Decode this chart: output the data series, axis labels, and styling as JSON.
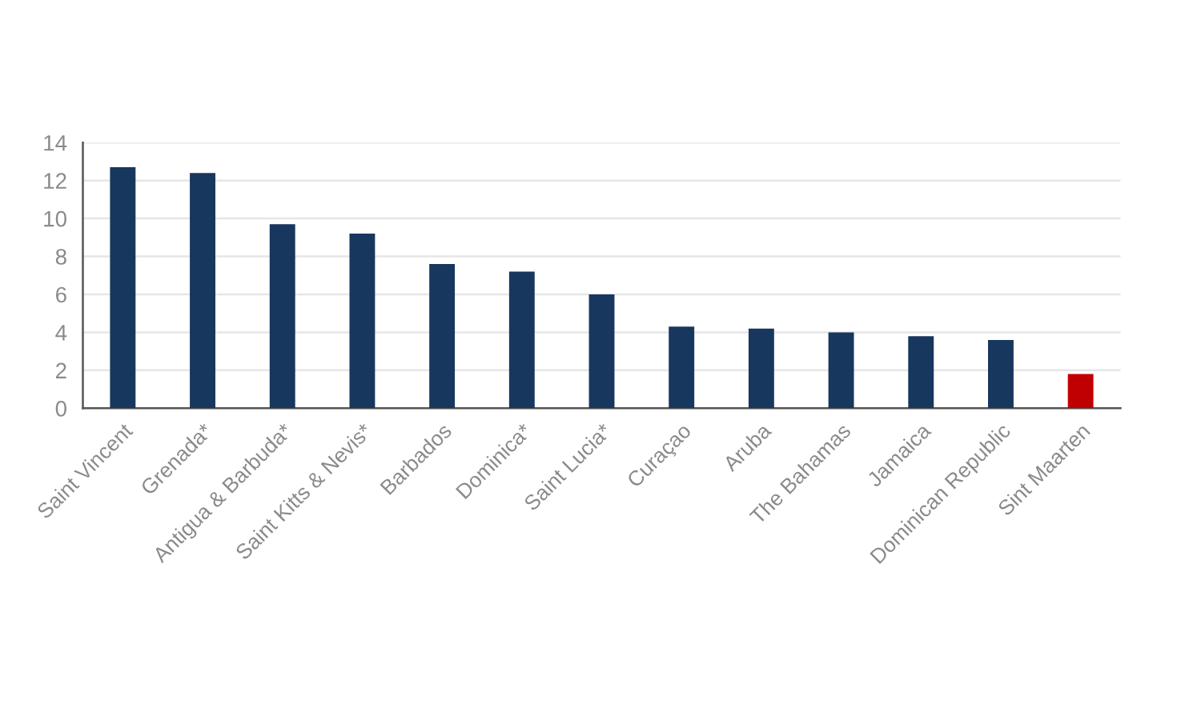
{
  "chart_data": {
    "type": "bar",
    "categories": [
      "Saint Vincent",
      "Grenada*",
      "Antigua & Barbuda*",
      "Saint Kitts & Nevis*",
      "Barbados",
      "Dominica*",
      "Saint Lucia*",
      "Curaçao",
      "Aruba",
      "The Bahamas",
      "Jamaica",
      "Dominican Republic",
      "Sint Maarten"
    ],
    "values": [
      12.7,
      12.4,
      9.7,
      9.2,
      7.6,
      7.2,
      6.0,
      4.3,
      4.2,
      4.0,
      3.8,
      3.6,
      1.8
    ],
    "colors": [
      "#17375e",
      "#17375e",
      "#17375e",
      "#17375e",
      "#17375e",
      "#17375e",
      "#17375e",
      "#17375e",
      "#17375e",
      "#17375e",
      "#17375e",
      "#17375e",
      "#c00000"
    ],
    "ylim": [
      0,
      14
    ],
    "yticks": [
      0,
      2,
      4,
      6,
      8,
      10,
      12,
      14
    ],
    "grid": "y"
  }
}
